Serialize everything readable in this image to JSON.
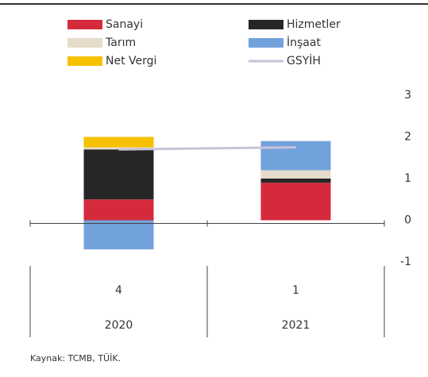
{
  "chart_data": {
    "type": "bar",
    "stacked": true,
    "categories": [
      "4",
      "1"
    ],
    "years": [
      "2020",
      "2021"
    ],
    "series": [
      {
        "name": "Sanayi",
        "color": "#d42a3c",
        "values": [
          0.5,
          0.9
        ]
      },
      {
        "name": "Hizmetler",
        "color": "#262626",
        "values": [
          1.2,
          0.1
        ]
      },
      {
        "name": "Tarım",
        "color": "#e6dccb",
        "values": [
          0.05,
          0.2
        ]
      },
      {
        "name": "İnşaat",
        "color": "#72a2dc",
        "values": [
          -0.7,
          0.7
        ]
      },
      {
        "name": "Net Vergi",
        "color": "#f6c200",
        "values": [
          0.25,
          0
        ]
      },
      {
        "name": "GSYİH",
        "color": "#c9c2d9",
        "type": "line",
        "values": [
          1.7,
          1.75
        ]
      }
    ],
    "ylim": [
      -1,
      3
    ],
    "yticks": [
      -1,
      0,
      1,
      2,
      3
    ],
    "source": "Kaynak: TCMB, TÜİK."
  }
}
